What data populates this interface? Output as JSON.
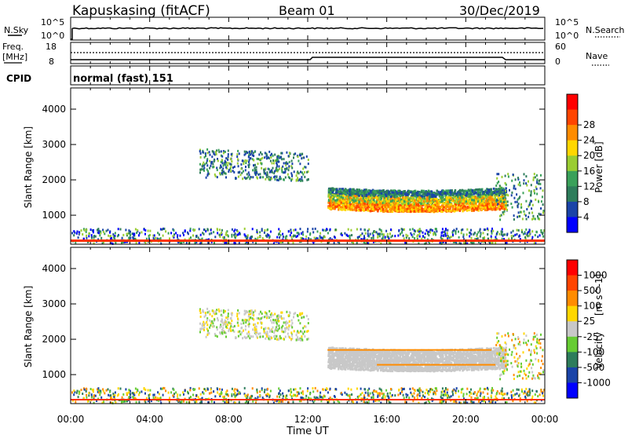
{
  "header": {
    "station": "Kapuskasing (fitACF)",
    "beam": "Beam 01",
    "date": "30/Dec/2019"
  },
  "noise_panel": {
    "left_label": "N.Sky",
    "left_ticks": [
      "10^5",
      "10^0"
    ],
    "right_ticks": [
      "10^5",
      "10^0"
    ],
    "right_label": "N.Search"
  },
  "freq_panel": {
    "left_label": "Freq.",
    "left_unit": "[MHz]",
    "left_ticks": [
      "18",
      "8"
    ],
    "right_ticks": [
      "60",
      "0"
    ],
    "right_label": "Nave"
  },
  "cpid": {
    "label": "CPID",
    "mode": "normal (fast) 151"
  },
  "chart_data": [
    {
      "type": "heatmap",
      "title": "",
      "xlabel": "Time UT",
      "ylabel": "Slant Range [km]",
      "x_ticks": [
        "00:00",
        "04:00",
        "08:00",
        "12:00",
        "16:00",
        "20:00",
        "00:00"
      ],
      "y_ticks": [
        1000,
        2000,
        3000,
        4000
      ],
      "colorbar_label": "Power [dB]",
      "colorbar_ticks": [
        4,
        8,
        12,
        16,
        20,
        24,
        28
      ],
      "colors": [
        "#0000ff",
        "#1a44a8",
        "#2e7d5b",
        "#3aa15a",
        "#9acd32",
        "#ffd700",
        "#ff8c00",
        "#ff4500",
        "#ff0000"
      ]
    },
    {
      "type": "heatmap",
      "title": "",
      "xlabel": "Time UT",
      "ylabel": "Slant Range [km]",
      "x_ticks": [
        "00:00",
        "04:00",
        "08:00",
        "12:00",
        "16:00",
        "20:00",
        "00:00"
      ],
      "y_ticks": [
        1000,
        2000,
        3000,
        4000
      ],
      "colorbar_label": "Velocity",
      "colorbar_unit": "[m s^-1]",
      "colorbar_ticks": [
        1000,
        500,
        100,
        25,
        -25,
        -100,
        -500,
        -1000
      ],
      "colors": [
        "#0000ff",
        "#1a44a8",
        "#2e7d5b",
        "#66cc33",
        "#c8c8c8",
        "#ffd700",
        "#ff8c00",
        "#ff4500",
        "#ff0000"
      ]
    }
  ]
}
